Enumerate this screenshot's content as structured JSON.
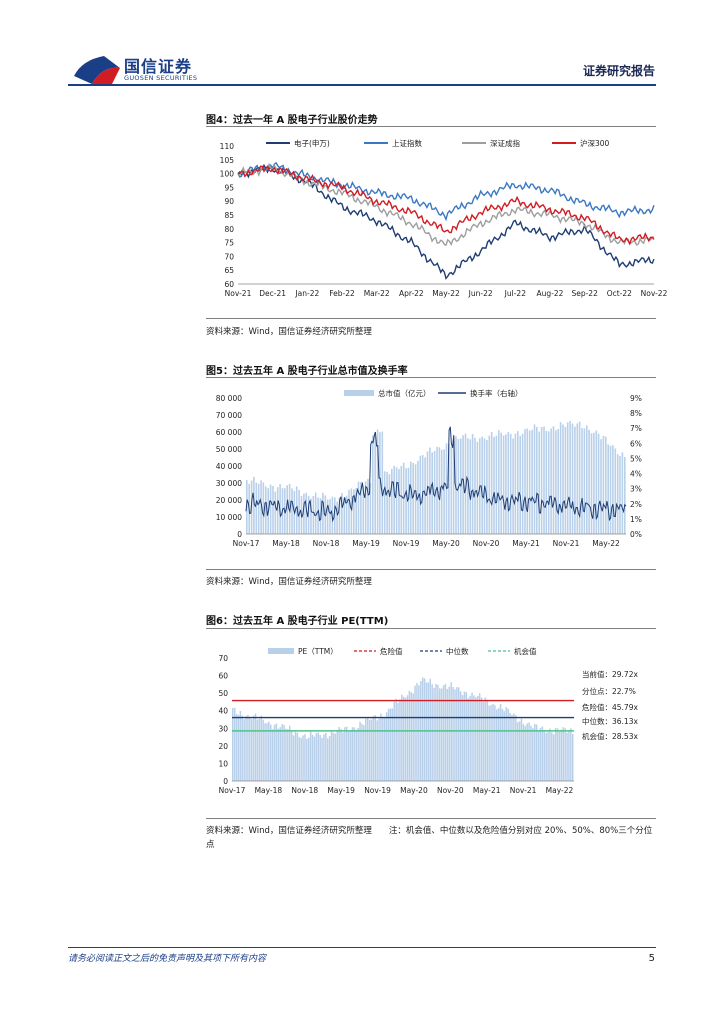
{
  "header": {
    "brand_cn": "国信证券",
    "brand_en": "GUOSEN SECURITIES",
    "report_type": "证券研究报告"
  },
  "figures": {
    "fig4": {
      "title": "图4：过去一年 A 股电子行业股价走势",
      "source": "资料来源：Wind，国信证券经济研究所整理"
    },
    "fig5": {
      "title": "图5：过去五年 A 股电子行业总市值及换手率",
      "source": "资料来源：Wind，国信证券经济研究所整理"
    },
    "fig6": {
      "title": "图6：过去五年 A 股电子行业 PE(TTM)",
      "source": "资料来源：Wind，国信证券经济研究所整理",
      "note": "注：机会值、中位数以及危险值分别对应 20%、50%、80%三个分位点"
    }
  },
  "footer": {
    "disclaimer": "请务必阅读正文之后的免责声明及其项下所有内容",
    "page": "5"
  },
  "colors": {
    "brand": "#1b3f86",
    "dark_blue": "#1f3d73",
    "mid_blue": "#3b78c3",
    "gray": "#9e9e9e",
    "red": "#d11c24",
    "bar_blue": "#b8d0ea",
    "green": "#4cc38a"
  },
  "chart_data": [
    {
      "id": "fig4",
      "type": "line",
      "title": "图4：过去一年 A 股电子行业股价走势",
      "categories": [
        "Nov-21",
        "Dec-21",
        "Jan-22",
        "Feb-22",
        "Mar-22",
        "Apr-22",
        "May-22",
        "Jun-22",
        "Jul-22",
        "Aug-22",
        "Sep-22",
        "Oct-22",
        "Nov-22"
      ],
      "ylim": [
        60,
        110
      ],
      "yticks": [
        60,
        65,
        70,
        75,
        80,
        85,
        90,
        95,
        100,
        105,
        110
      ],
      "series": [
        {
          "name": "电子(申万)",
          "color": "#1f3d73",
          "values": [
            100,
            102,
            97,
            88,
            83,
            75,
            63,
            72,
            82,
            77,
            80,
            67,
            69
          ]
        },
        {
          "name": "上证指数",
          "color": "#3b78c3",
          "values": [
            100,
            103,
            99,
            96,
            93,
            91,
            85,
            92,
            96,
            94,
            89,
            86,
            87
          ]
        },
        {
          "name": "深证成指",
          "color": "#9e9e9e",
          "values": [
            100,
            102,
            97,
            93,
            88,
            82,
            74,
            82,
            87,
            85,
            82,
            75,
            76
          ]
        },
        {
          "name": "沪深300",
          "color": "#d11c24",
          "values": [
            100,
            102,
            98,
            95,
            90,
            86,
            79,
            86,
            90,
            87,
            84,
            76,
            77
          ]
        }
      ]
    },
    {
      "id": "fig5",
      "type": "bar",
      "title": "图5：过去五年 A 股电子行业总市值及换手率",
      "categories": [
        "Nov-17",
        "May-18",
        "Nov-18",
        "May-19",
        "Nov-19",
        "May-20",
        "Nov-20",
        "May-21",
        "Nov-21",
        "May-22"
      ],
      "ylim": [
        0,
        80000
      ],
      "yticks": [
        "0",
        "10 000",
        "20 000",
        "30 000",
        "40 000",
        "50 000",
        "60 000",
        "70 000",
        "80 000"
      ],
      "y2lim": [
        0,
        9
      ],
      "y2ticks": [
        "0%",
        "1%",
        "2%",
        "3%",
        "4%",
        "5%",
        "6%",
        "7%",
        "8%",
        "9%"
      ],
      "series": [
        {
          "name": "总市值（亿元）",
          "kind": "bar",
          "color": "#b8d0ea",
          "values": [
            31000,
            27000,
            20000,
            32000,
            43000,
            56000,
            58000,
            62000,
            65000,
            46000
          ]
        },
        {
          "name": "换手率（右轴）",
          "kind": "line",
          "color": "#1f3d73",
          "values": [
            2.0,
            1.7,
            1.4,
            3.2,
            2.5,
            3.3,
            2.2,
            2.1,
            1.7,
            1.6
          ]
        }
      ]
    },
    {
      "id": "fig6",
      "type": "bar",
      "title": "图6：过去五年 A 股电子行业 PE(TTM)",
      "categories": [
        "Nov-17",
        "May-18",
        "Nov-18",
        "May-19",
        "Nov-19",
        "May-20",
        "Nov-20",
        "May-21",
        "Nov-21",
        "May-22"
      ],
      "ylim": [
        0,
        70
      ],
      "yticks": [
        "0",
        "10",
        "20",
        "30",
        "40",
        "50",
        "60",
        "70"
      ],
      "series": [
        {
          "name": "PE（TTM）",
          "kind": "bar",
          "color": "#b8d0ea",
          "values": [
            40,
            33,
            25,
            29,
            38,
            57,
            52,
            43,
            30,
            28
          ]
        }
      ],
      "reference_lines": [
        {
          "name": "危险值",
          "value": 45.79,
          "color": "#d11c24"
        },
        {
          "name": "中位数",
          "value": 36.13,
          "color": "#1f3d73"
        },
        {
          "name": "机会值",
          "value": 28.53,
          "color": "#4cc38a"
        }
      ],
      "annotations": [
        "当前值：29.72x",
        "分位点：22.7%",
        "危险值：45.79x",
        "中位数：36.13x",
        "机会值：28.53x"
      ]
    }
  ]
}
